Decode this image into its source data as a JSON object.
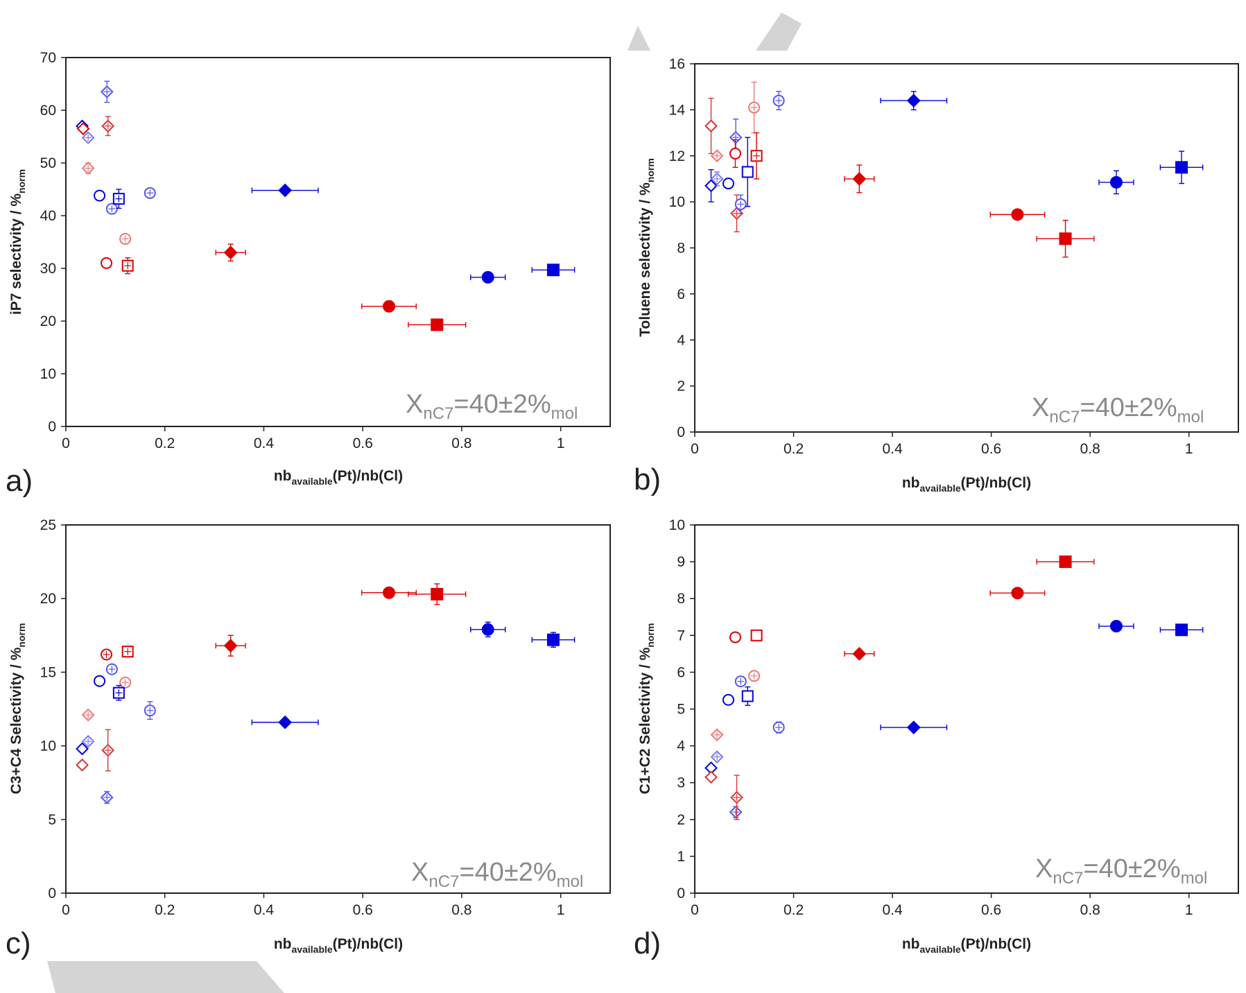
{
  "figure": {
    "annotation": {
      "main": "X",
      "sub": "nC7",
      "mid": "=40±2%",
      "end": "mol"
    }
  },
  "chart_data": [
    {
      "type": "scatter",
      "panel": "a)",
      "xlabel": {
        "main": "nb",
        "sub": "available",
        "rest": "(Pt)/nb(Cl)"
      },
      "ylabel": {
        "main": "iP7 selectivity  / %",
        "sub": "norm"
      },
      "xlim": [
        0,
        1.1
      ],
      "ylim": [
        0,
        70
      ],
      "xticks": [
        "0",
        "0.2",
        "0.4",
        "0.6",
        "0.8",
        "1"
      ],
      "yticks": [
        "0",
        "10",
        "20",
        "30",
        "40",
        "50",
        "60",
        "70"
      ],
      "grid": false,
      "points": [
        {
          "x": 0.033,
          "y": 57.0,
          "color": "#0000dd",
          "shape": "diamond",
          "fill": "open",
          "xerr": 0,
          "yerr": 0
        },
        {
          "x": 0.035,
          "y": 56.5,
          "color": "#dd0000",
          "shape": "diamond",
          "fill": "open",
          "xerr": 0,
          "yerr": 0
        },
        {
          "x": 0.045,
          "y": 54.8,
          "color": "#7777ee",
          "shape": "diamond",
          "fill": "cross",
          "xerr": 0,
          "yerr": 0
        },
        {
          "x": 0.045,
          "y": 49.0,
          "color": "#ee7777",
          "shape": "diamond",
          "fill": "cross",
          "xerr": 0,
          "yerr": 1.0
        },
        {
          "x": 0.083,
          "y": 63.5,
          "color": "#5555ee",
          "shape": "diamond",
          "fill": "cross",
          "xerr": 0,
          "yerr": 2.0
        },
        {
          "x": 0.085,
          "y": 57.0,
          "color": "#dd3333",
          "shape": "diamond",
          "fill": "cross",
          "xerr": 0,
          "yerr": 1.8
        },
        {
          "x": 0.068,
          "y": 43.8,
          "color": "#0000dd",
          "shape": "circle",
          "fill": "open",
          "xerr": 0,
          "yerr": 0
        },
        {
          "x": 0.082,
          "y": 31.0,
          "color": "#dd0000",
          "shape": "circle",
          "fill": "open",
          "xerr": 0,
          "yerr": 0
        },
        {
          "x": 0.093,
          "y": 41.3,
          "color": "#5555ee",
          "shape": "circle",
          "fill": "cross",
          "xerr": 0,
          "yerr": 0.8
        },
        {
          "x": 0.12,
          "y": 35.6,
          "color": "#ee7777",
          "shape": "circle",
          "fill": "cross",
          "xerr": 0,
          "yerr": 0
        },
        {
          "x": 0.17,
          "y": 44.3,
          "color": "#5555ee",
          "shape": "circle",
          "fill": "cross",
          "xerr": 0,
          "yerr": 0
        },
        {
          "x": 0.107,
          "y": 43.2,
          "color": "#0000dd",
          "shape": "square",
          "fill": "cross",
          "xerr": 0,
          "yerr": 1.8
        },
        {
          "x": 0.125,
          "y": 30.5,
          "color": "#dd0000",
          "shape": "square",
          "fill": "cross",
          "xerr": 0,
          "yerr": 1.5
        },
        {
          "x": 0.443,
          "y": 44.8,
          "color": "#0000dd",
          "shape": "diamond",
          "fill": "solid",
          "xerr": 0.067,
          "yerr": 0
        },
        {
          "x": 0.333,
          "y": 33.0,
          "color": "#dd0000",
          "shape": "diamond",
          "fill": "solid",
          "xerr": 0.03,
          "yerr": 1.6
        },
        {
          "x": 0.653,
          "y": 22.8,
          "color": "#dd0000",
          "shape": "circle",
          "fill": "solid",
          "xerr": 0.055,
          "yerr": 0
        },
        {
          "x": 0.75,
          "y": 19.3,
          "color": "#dd0000",
          "shape": "square",
          "fill": "solid",
          "xerr": 0.058,
          "yerr": 0
        },
        {
          "x": 0.853,
          "y": 28.3,
          "color": "#0000dd",
          "shape": "circle",
          "fill": "solid",
          "xerr": 0.035,
          "yerr": 0
        },
        {
          "x": 0.985,
          "y": 29.7,
          "color": "#0000dd",
          "shape": "square",
          "fill": "solid",
          "xerr": 0.043,
          "yerr": 0
        }
      ]
    },
    {
      "type": "scatter",
      "panel": "b)",
      "xlabel": {
        "main": "nb",
        "sub": "available",
        "rest": "(Pt)/nb(Cl)"
      },
      "ylabel": {
        "main": "Toluene selectivity  / %",
        "sub": "norm"
      },
      "xlim": [
        0,
        1.1
      ],
      "ylim": [
        0,
        16
      ],
      "xticks": [
        "0",
        "0.2",
        "0.4",
        "0.6",
        "0.8",
        "1"
      ],
      "yticks": [
        "0",
        "2",
        "4",
        "6",
        "8",
        "10",
        "12",
        "14",
        "16"
      ],
      "grid": false,
      "points": [
        {
          "x": 0.033,
          "y": 13.3,
          "color": "#dd3333",
          "shape": "diamond",
          "fill": "open",
          "xerr": 0,
          "yerr": 1.2
        },
        {
          "x": 0.033,
          "y": 10.7,
          "color": "#0000dd",
          "shape": "diamond",
          "fill": "open",
          "xerr": 0,
          "yerr": 0.7
        },
        {
          "x": 0.045,
          "y": 12.0,
          "color": "#ee7777",
          "shape": "diamond",
          "fill": "cross",
          "xerr": 0,
          "yerr": 0
        },
        {
          "x": 0.045,
          "y": 11.0,
          "color": "#7777ee",
          "shape": "diamond",
          "fill": "cross",
          "xerr": 0,
          "yerr": 0.3
        },
        {
          "x": 0.083,
          "y": 12.8,
          "color": "#5555ee",
          "shape": "diamond",
          "fill": "cross",
          "xerr": 0,
          "yerr": 0.8
        },
        {
          "x": 0.085,
          "y": 9.5,
          "color": "#dd3333",
          "shape": "diamond",
          "fill": "cross",
          "xerr": 0,
          "yerr": 0.8
        },
        {
          "x": 0.068,
          "y": 10.8,
          "color": "#0000dd",
          "shape": "circle",
          "fill": "open",
          "xerr": 0,
          "yerr": 0
        },
        {
          "x": 0.082,
          "y": 12.1,
          "color": "#dd0000",
          "shape": "circle",
          "fill": "open",
          "xerr": 0,
          "yerr": 0.6
        },
        {
          "x": 0.093,
          "y": 9.9,
          "color": "#5555ee",
          "shape": "circle",
          "fill": "cross",
          "xerr": 0,
          "yerr": 0.4
        },
        {
          "x": 0.12,
          "y": 14.1,
          "color": "#ee7777",
          "shape": "circle",
          "fill": "cross",
          "xerr": 0,
          "yerr": 1.1
        },
        {
          "x": 0.17,
          "y": 14.4,
          "color": "#5555ee",
          "shape": "circle",
          "fill": "cross",
          "xerr": 0,
          "yerr": 0.4
        },
        {
          "x": 0.107,
          "y": 11.3,
          "color": "#0000dd",
          "shape": "square",
          "fill": "open",
          "xerr": 0,
          "yerr": 1.5
        },
        {
          "x": 0.125,
          "y": 12.0,
          "color": "#dd0000",
          "shape": "square",
          "fill": "cross",
          "xerr": 0,
          "yerr": 1.0
        },
        {
          "x": 0.443,
          "y": 14.4,
          "color": "#0000dd",
          "shape": "diamond",
          "fill": "solid",
          "xerr": 0.067,
          "yerr": 0.4
        },
        {
          "x": 0.333,
          "y": 11.0,
          "color": "#dd0000",
          "shape": "diamond",
          "fill": "solid",
          "xerr": 0.03,
          "yerr": 0.6
        },
        {
          "x": 0.653,
          "y": 9.45,
          "color": "#dd0000",
          "shape": "circle",
          "fill": "solid",
          "xerr": 0.055,
          "yerr": 0
        },
        {
          "x": 0.75,
          "y": 8.4,
          "color": "#dd0000",
          "shape": "square",
          "fill": "solid",
          "xerr": 0.058,
          "yerr": 0.8
        },
        {
          "x": 0.853,
          "y": 10.85,
          "color": "#0000dd",
          "shape": "circle",
          "fill": "solid",
          "xerr": 0.035,
          "yerr": 0.5
        },
        {
          "x": 0.985,
          "y": 11.5,
          "color": "#0000dd",
          "shape": "square",
          "fill": "solid",
          "xerr": 0.043,
          "yerr": 0.7
        }
      ]
    },
    {
      "type": "scatter",
      "panel": "c)",
      "xlabel": {
        "main": "nb",
        "sub": "available",
        "rest": "(Pt)/nb(Cl)"
      },
      "ylabel": {
        "main": "C3+C4 Selectivity  / %",
        "sub": "norm"
      },
      "xlim": [
        0,
        1.1
      ],
      "ylim": [
        0,
        25
      ],
      "xticks": [
        "0",
        "0.2",
        "0.4",
        "0.6",
        "0.8",
        "1"
      ],
      "yticks": [
        "0",
        "5",
        "10",
        "15",
        "20",
        "25"
      ],
      "grid": false,
      "points": [
        {
          "x": 0.033,
          "y": 9.8,
          "color": "#0000dd",
          "shape": "diamond",
          "fill": "open",
          "xerr": 0,
          "yerr": 0
        },
        {
          "x": 0.033,
          "y": 8.7,
          "color": "#dd3333",
          "shape": "diamond",
          "fill": "open",
          "xerr": 0,
          "yerr": 0
        },
        {
          "x": 0.045,
          "y": 12.1,
          "color": "#ee7777",
          "shape": "diamond",
          "fill": "cross",
          "xerr": 0,
          "yerr": 0
        },
        {
          "x": 0.045,
          "y": 10.3,
          "color": "#7777ee",
          "shape": "diamond",
          "fill": "cross",
          "xerr": 0,
          "yerr": 0
        },
        {
          "x": 0.083,
          "y": 6.5,
          "color": "#5555ee",
          "shape": "diamond",
          "fill": "cross",
          "xerr": 0,
          "yerr": 0.4
        },
        {
          "x": 0.085,
          "y": 9.7,
          "color": "#dd3333",
          "shape": "diamond",
          "fill": "cross",
          "xerr": 0,
          "yerr": 1.4
        },
        {
          "x": 0.068,
          "y": 14.4,
          "color": "#0000dd",
          "shape": "circle",
          "fill": "open",
          "xerr": 0,
          "yerr": 0
        },
        {
          "x": 0.082,
          "y": 16.2,
          "color": "#dd0000",
          "shape": "circle",
          "fill": "cross",
          "xerr": 0,
          "yerr": 0
        },
        {
          "x": 0.093,
          "y": 15.2,
          "color": "#5555ee",
          "shape": "circle",
          "fill": "cross",
          "xerr": 0,
          "yerr": 0
        },
        {
          "x": 0.12,
          "y": 14.3,
          "color": "#ee7777",
          "shape": "circle",
          "fill": "cross",
          "xerr": 0,
          "yerr": 0
        },
        {
          "x": 0.17,
          "y": 12.4,
          "color": "#5555ee",
          "shape": "circle",
          "fill": "cross",
          "xerr": 0,
          "yerr": 0.6
        },
        {
          "x": 0.107,
          "y": 13.6,
          "color": "#0000dd",
          "shape": "square",
          "fill": "cross",
          "xerr": 0,
          "yerr": 0.5
        },
        {
          "x": 0.125,
          "y": 16.4,
          "color": "#dd0000",
          "shape": "square",
          "fill": "cross",
          "xerr": 0,
          "yerr": 0
        },
        {
          "x": 0.443,
          "y": 11.6,
          "color": "#0000dd",
          "shape": "diamond",
          "fill": "solid",
          "xerr": 0.067,
          "yerr": 0
        },
        {
          "x": 0.333,
          "y": 16.8,
          "color": "#dd0000",
          "shape": "diamond",
          "fill": "solid",
          "xerr": 0.03,
          "yerr": 0.7
        },
        {
          "x": 0.653,
          "y": 20.4,
          "color": "#dd0000",
          "shape": "circle",
          "fill": "solid",
          "xerr": 0.055,
          "yerr": 0
        },
        {
          "x": 0.75,
          "y": 20.3,
          "color": "#dd0000",
          "shape": "square",
          "fill": "solid",
          "xerr": 0.058,
          "yerr": 0.7
        },
        {
          "x": 0.853,
          "y": 17.9,
          "color": "#0000dd",
          "shape": "circle",
          "fill": "solid",
          "xerr": 0.035,
          "yerr": 0.5
        },
        {
          "x": 0.985,
          "y": 17.2,
          "color": "#0000dd",
          "shape": "square",
          "fill": "solid",
          "xerr": 0.043,
          "yerr": 0.5
        }
      ]
    },
    {
      "type": "scatter",
      "panel": "d)",
      "xlabel": {
        "main": "nb",
        "sub": "available",
        "rest": "(Pt)/nb(Cl)"
      },
      "ylabel": {
        "main": "C1+C2 Selectivity  / %",
        "sub": "norm"
      },
      "xlim": [
        0,
        1.1
      ],
      "ylim": [
        0,
        10
      ],
      "xticks": [
        "0",
        "0.2",
        "0.4",
        "0.6",
        "0.8",
        "1"
      ],
      "yticks": [
        "0",
        "1",
        "2",
        "3",
        "4",
        "5",
        "6",
        "7",
        "8",
        "9",
        "10"
      ],
      "grid": false,
      "points": [
        {
          "x": 0.033,
          "y": 3.4,
          "color": "#0000dd",
          "shape": "diamond",
          "fill": "open",
          "xerr": 0,
          "yerr": 0
        },
        {
          "x": 0.033,
          "y": 3.15,
          "color": "#dd3333",
          "shape": "diamond",
          "fill": "open",
          "xerr": 0,
          "yerr": 0
        },
        {
          "x": 0.045,
          "y": 4.3,
          "color": "#ee7777",
          "shape": "diamond",
          "fill": "cross",
          "xerr": 0,
          "yerr": 0
        },
        {
          "x": 0.045,
          "y": 3.7,
          "color": "#7777ee",
          "shape": "diamond",
          "fill": "cross",
          "xerr": 0,
          "yerr": 0
        },
        {
          "x": 0.083,
          "y": 2.2,
          "color": "#5555ee",
          "shape": "diamond",
          "fill": "cross",
          "xerr": 0,
          "yerr": 0.15
        },
        {
          "x": 0.085,
          "y": 2.6,
          "color": "#dd3333",
          "shape": "diamond",
          "fill": "cross",
          "xerr": 0,
          "yerr": 0.6
        },
        {
          "x": 0.068,
          "y": 5.25,
          "color": "#0000dd",
          "shape": "circle",
          "fill": "open",
          "xerr": 0,
          "yerr": 0
        },
        {
          "x": 0.082,
          "y": 6.95,
          "color": "#dd0000",
          "shape": "circle",
          "fill": "open",
          "xerr": 0,
          "yerr": 0
        },
        {
          "x": 0.093,
          "y": 5.75,
          "color": "#5555ee",
          "shape": "circle",
          "fill": "cross",
          "xerr": 0,
          "yerr": 0
        },
        {
          "x": 0.12,
          "y": 5.9,
          "color": "#ee7777",
          "shape": "circle",
          "fill": "cross",
          "xerr": 0,
          "yerr": 0
        },
        {
          "x": 0.17,
          "y": 4.5,
          "color": "#5555ee",
          "shape": "circle",
          "fill": "cross",
          "xerr": 0,
          "yerr": 0.15
        },
        {
          "x": 0.107,
          "y": 5.35,
          "color": "#0000dd",
          "shape": "square",
          "fill": "open",
          "xerr": 0,
          "yerr": 0.25
        },
        {
          "x": 0.125,
          "y": 7.0,
          "color": "#dd0000",
          "shape": "square",
          "fill": "open",
          "xerr": 0,
          "yerr": 0
        },
        {
          "x": 0.443,
          "y": 4.5,
          "color": "#0000dd",
          "shape": "diamond",
          "fill": "solid",
          "xerr": 0.067,
          "yerr": 0
        },
        {
          "x": 0.333,
          "y": 6.5,
          "color": "#dd0000",
          "shape": "diamond",
          "fill": "solid",
          "xerr": 0.03,
          "yerr": 0
        },
        {
          "x": 0.653,
          "y": 8.15,
          "color": "#dd0000",
          "shape": "circle",
          "fill": "solid",
          "xerr": 0.055,
          "yerr": 0
        },
        {
          "x": 0.75,
          "y": 9.0,
          "color": "#dd0000",
          "shape": "square",
          "fill": "solid",
          "xerr": 0.058,
          "yerr": 0
        },
        {
          "x": 0.853,
          "y": 7.25,
          "color": "#0000dd",
          "shape": "circle",
          "fill": "solid",
          "xerr": 0.035,
          "yerr": 0
        },
        {
          "x": 0.985,
          "y": 7.15,
          "color": "#0000dd",
          "shape": "square",
          "fill": "solid",
          "xerr": 0.043,
          "yerr": 0.15
        }
      ]
    }
  ]
}
